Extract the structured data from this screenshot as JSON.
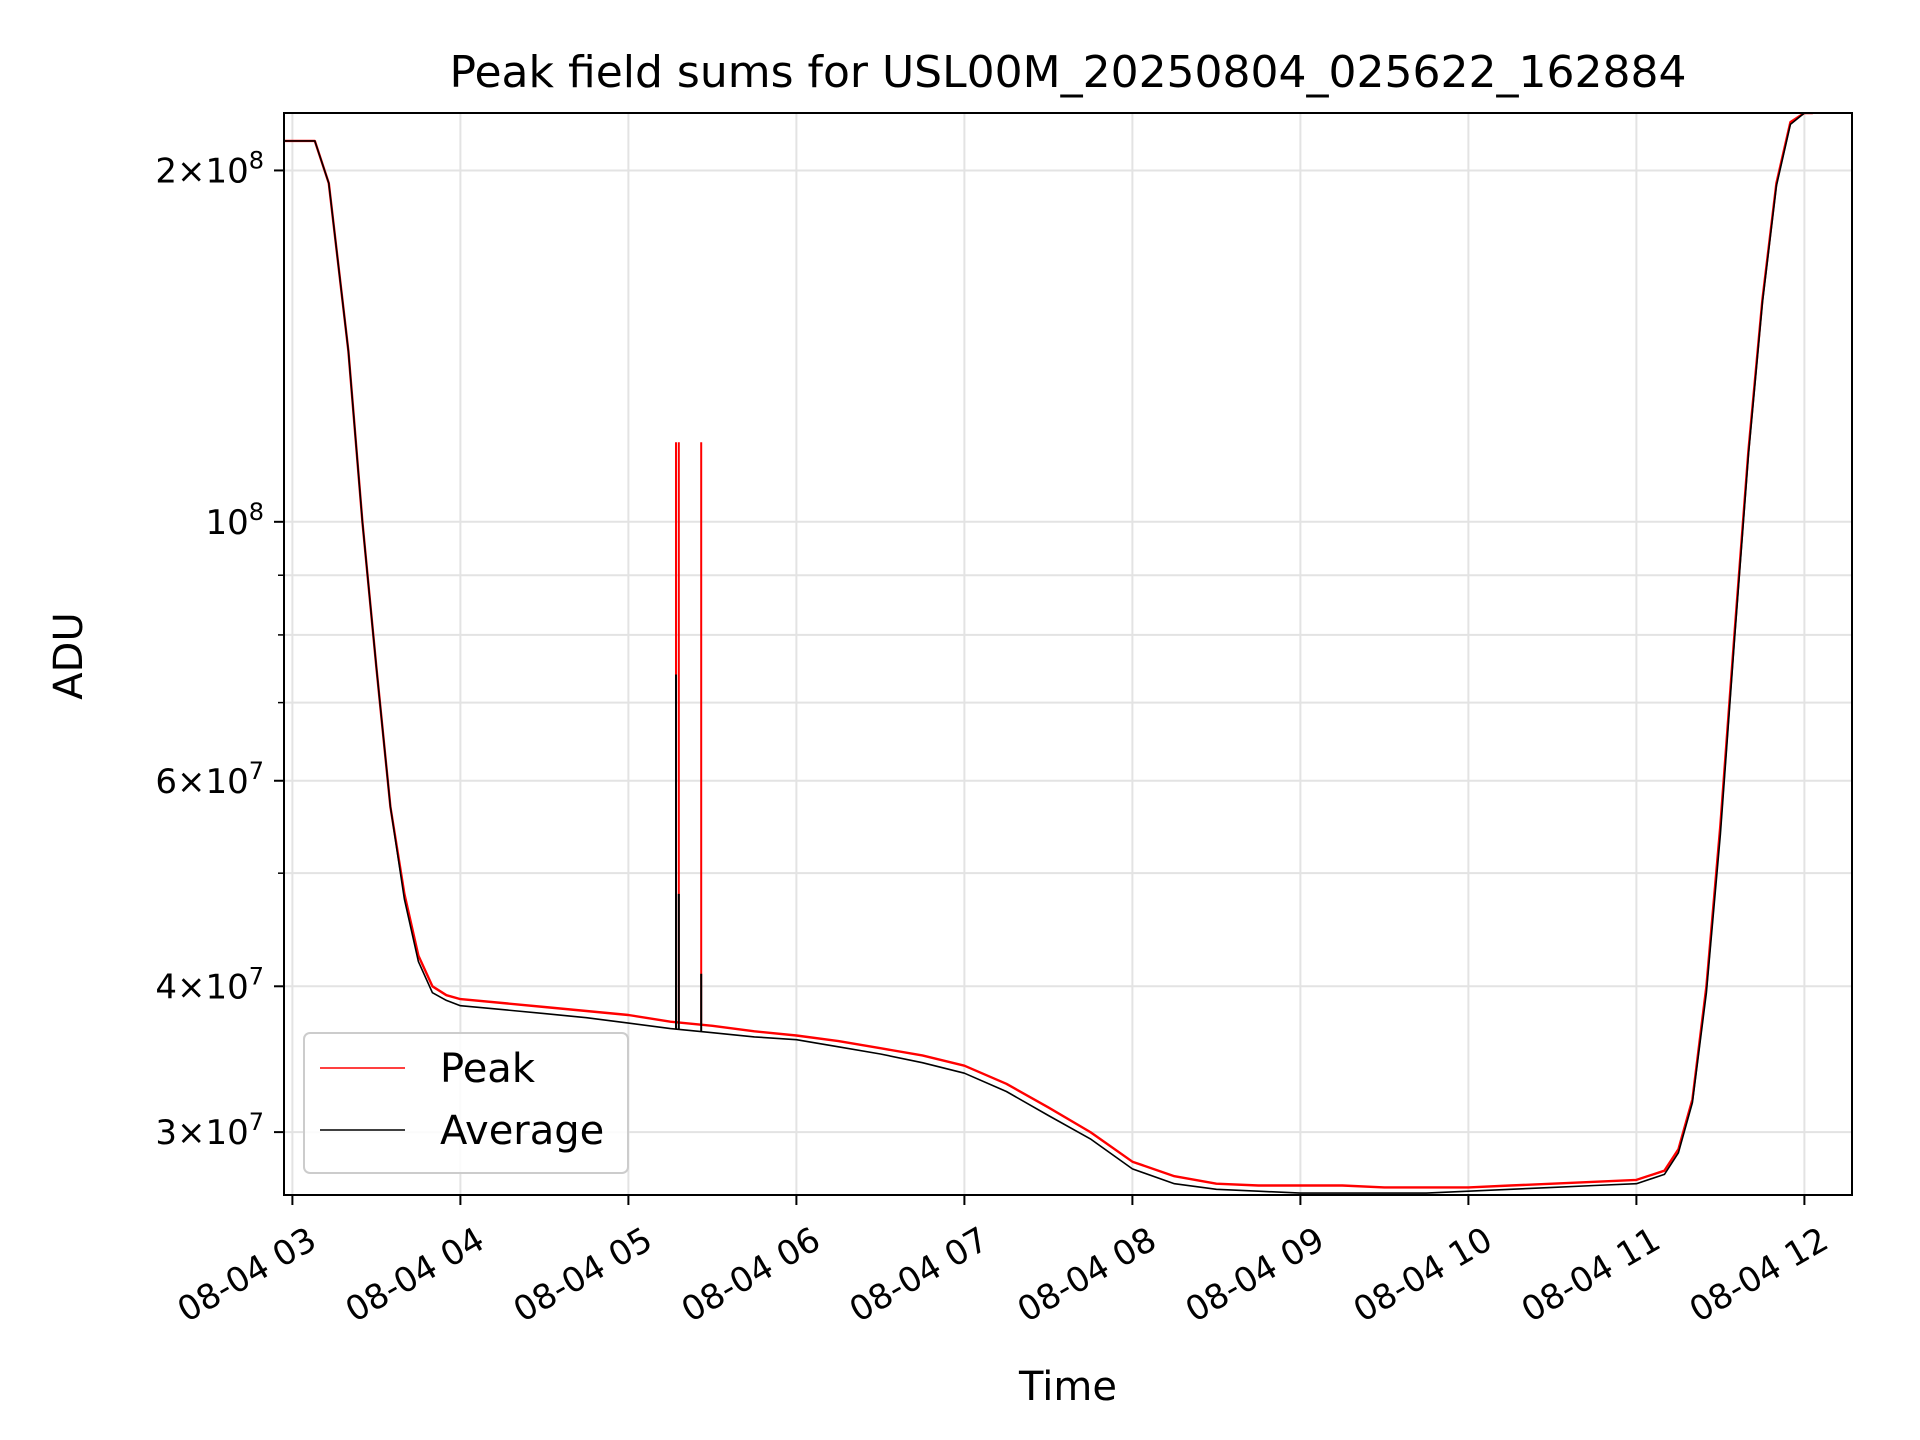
{
  "chart_data": {
    "type": "line",
    "title": "Peak field sums for USL00M_20250804_025622_162884",
    "xlabel": "Time",
    "ylabel": "ADU",
    "yscale": "log",
    "grid": true,
    "legend_placement": "lower-left",
    "xlim": [
      "2025-08-04 02:57",
      "2025-08-04 12:17"
    ],
    "ylim": [
      26500000,
      224000000
    ],
    "x_ticks": [
      {
        "x": "2025-08-04 03:00",
        "label": "08-04 03"
      },
      {
        "x": "2025-08-04 04:00",
        "label": "08-04 04"
      },
      {
        "x": "2025-08-04 05:00",
        "label": "08-04 05"
      },
      {
        "x": "2025-08-04 06:00",
        "label": "08-04 06"
      },
      {
        "x": "2025-08-04 07:00",
        "label": "08-04 07"
      },
      {
        "x": "2025-08-04 08:00",
        "label": "08-04 08"
      },
      {
        "x": "2025-08-04 09:00",
        "label": "08-04 09"
      },
      {
        "x": "2025-08-04 10:00",
        "label": "08-04 10"
      },
      {
        "x": "2025-08-04 11:00",
        "label": "08-04 11"
      },
      {
        "x": "2025-08-04 12:00",
        "label": "08-04 12"
      }
    ],
    "y_ticks_major": [
      {
        "value": 30000000,
        "mantissa": "3",
        "exponent": "7"
      },
      {
        "value": 40000000,
        "mantissa": "4",
        "exponent": "7"
      },
      {
        "value": 60000000,
        "mantissa": "6",
        "exponent": "7"
      },
      {
        "value": 100000000,
        "mantissa": "",
        "exponent": "8"
      },
      {
        "value": 200000000,
        "mantissa": "2",
        "exponent": "8"
      }
    ],
    "y_ticks_minor": [
      50000000,
      70000000,
      80000000,
      90000000
    ],
    "series": [
      {
        "name": "Peak",
        "color": "#ff0000",
        "x": [
          "2025-08-04 02:57",
          "2025-08-04 03:00",
          "2025-08-04 03:08",
          "2025-08-04 03:13",
          "2025-08-04 03:20",
          "2025-08-04 03:25",
          "2025-08-04 03:30",
          "2025-08-04 03:35",
          "2025-08-04 03:40",
          "2025-08-04 03:45",
          "2025-08-04 03:50",
          "2025-08-04 03:55",
          "2025-08-04 04:00",
          "2025-08-04 04:15",
          "2025-08-04 04:30",
          "2025-08-04 04:45",
          "2025-08-04 05:00",
          "2025-08-04 05:15",
          "2025-08-04 05:30",
          "2025-08-04 05:45",
          "2025-08-04 06:00",
          "2025-08-04 06:15",
          "2025-08-04 06:30",
          "2025-08-04 06:45",
          "2025-08-04 07:00",
          "2025-08-04 07:15",
          "2025-08-04 07:30",
          "2025-08-04 07:45",
          "2025-08-04 08:00",
          "2025-08-04 08:15",
          "2025-08-04 08:30",
          "2025-08-04 08:45",
          "2025-08-04 09:00",
          "2025-08-04 09:15",
          "2025-08-04 09:30",
          "2025-08-04 09:45",
          "2025-08-04 10:00",
          "2025-08-04 10:15",
          "2025-08-04 10:30",
          "2025-08-04 10:45",
          "2025-08-04 11:00",
          "2025-08-04 11:10",
          "2025-08-04 11:15",
          "2025-08-04 11:20",
          "2025-08-04 11:25",
          "2025-08-04 11:30",
          "2025-08-04 11:35",
          "2025-08-04 11:40",
          "2025-08-04 11:45",
          "2025-08-04 11:50",
          "2025-08-04 11:55",
          "2025-08-04 12:00",
          "2025-08-04 12:03"
        ],
        "y": [
          212000000,
          212000000,
          212000000,
          195000000,
          140000000,
          100000000,
          75000000,
          57000000,
          48000000,
          42500000,
          40000000,
          39300000,
          39000000,
          38700000,
          38400000,
          38100000,
          37800000,
          37300000,
          37000000,
          36600000,
          36300000,
          35900000,
          35400000,
          34900000,
          34200000,
          33000000,
          31500000,
          30000000,
          28300000,
          27500000,
          27100000,
          27000000,
          27000000,
          27000000,
          26900000,
          26900000,
          26900000,
          27000000,
          27100000,
          27200000,
          27300000,
          27800000,
          29000000,
          32000000,
          40000000,
          55000000,
          80000000,
          115000000,
          155000000,
          195000000,
          220000000,
          224000000,
          224000000
        ]
      },
      {
        "name": "Average",
        "color": "#000000",
        "x": [
          "2025-08-04 02:57",
          "2025-08-04 03:00",
          "2025-08-04 03:08",
          "2025-08-04 03:13",
          "2025-08-04 03:20",
          "2025-08-04 03:25",
          "2025-08-04 03:30",
          "2025-08-04 03:35",
          "2025-08-04 03:40",
          "2025-08-04 03:45",
          "2025-08-04 03:50",
          "2025-08-04 03:55",
          "2025-08-04 04:00",
          "2025-08-04 04:15",
          "2025-08-04 04:30",
          "2025-08-04 04:45",
          "2025-08-04 05:00",
          "2025-08-04 05:15",
          "2025-08-04 05:30",
          "2025-08-04 05:45",
          "2025-08-04 06:00",
          "2025-08-04 06:15",
          "2025-08-04 06:30",
          "2025-08-04 06:45",
          "2025-08-04 07:00",
          "2025-08-04 07:15",
          "2025-08-04 07:30",
          "2025-08-04 07:45",
          "2025-08-04 08:00",
          "2025-08-04 08:15",
          "2025-08-04 08:30",
          "2025-08-04 08:45",
          "2025-08-04 09:00",
          "2025-08-04 09:15",
          "2025-08-04 09:30",
          "2025-08-04 09:45",
          "2025-08-04 10:00",
          "2025-08-04 10:15",
          "2025-08-04 10:30",
          "2025-08-04 10:45",
          "2025-08-04 11:00",
          "2025-08-04 11:10",
          "2025-08-04 11:15",
          "2025-08-04 11:20",
          "2025-08-04 11:25",
          "2025-08-04 11:30",
          "2025-08-04 11:35",
          "2025-08-04 11:40",
          "2025-08-04 11:45",
          "2025-08-04 11:50",
          "2025-08-04 11:55",
          "2025-08-04 12:00",
          "2025-08-04 12:03"
        ],
        "y": [
          212000000,
          212000000,
          212000000,
          195000000,
          140000000,
          100000000,
          75000000,
          57000000,
          47500000,
          42000000,
          39500000,
          38900000,
          38500000,
          38200000,
          37900000,
          37600000,
          37200000,
          36800000,
          36500000,
          36200000,
          36000000,
          35500000,
          35000000,
          34400000,
          33700000,
          32500000,
          31000000,
          29600000,
          27900000,
          27100000,
          26800000,
          26700000,
          26600000,
          26600000,
          26600000,
          26600000,
          26700000,
          26800000,
          26900000,
          27000000,
          27100000,
          27600000,
          28800000,
          31800000,
          39500000,
          54000000,
          79000000,
          114000000,
          154000000,
          194000000,
          219000000,
          224000000,
          224000000
        ]
      }
    ],
    "spikes": [
      {
        "series": "Peak",
        "x": "2025-08-04 05:17",
        "y": 117000000
      },
      {
        "series": "Peak",
        "x": "2025-08-04 05:18",
        "y": 117000000
      },
      {
        "series": "Peak",
        "x": "2025-08-04 05:26",
        "y": 117000000
      },
      {
        "series": "Average",
        "x": "2025-08-04 05:17",
        "y": 74000000
      },
      {
        "series": "Average",
        "x": "2025-08-04 05:18",
        "y": 48000000
      },
      {
        "series": "Average",
        "x": "2025-08-04 05:26",
        "y": 41000000
      }
    ]
  }
}
